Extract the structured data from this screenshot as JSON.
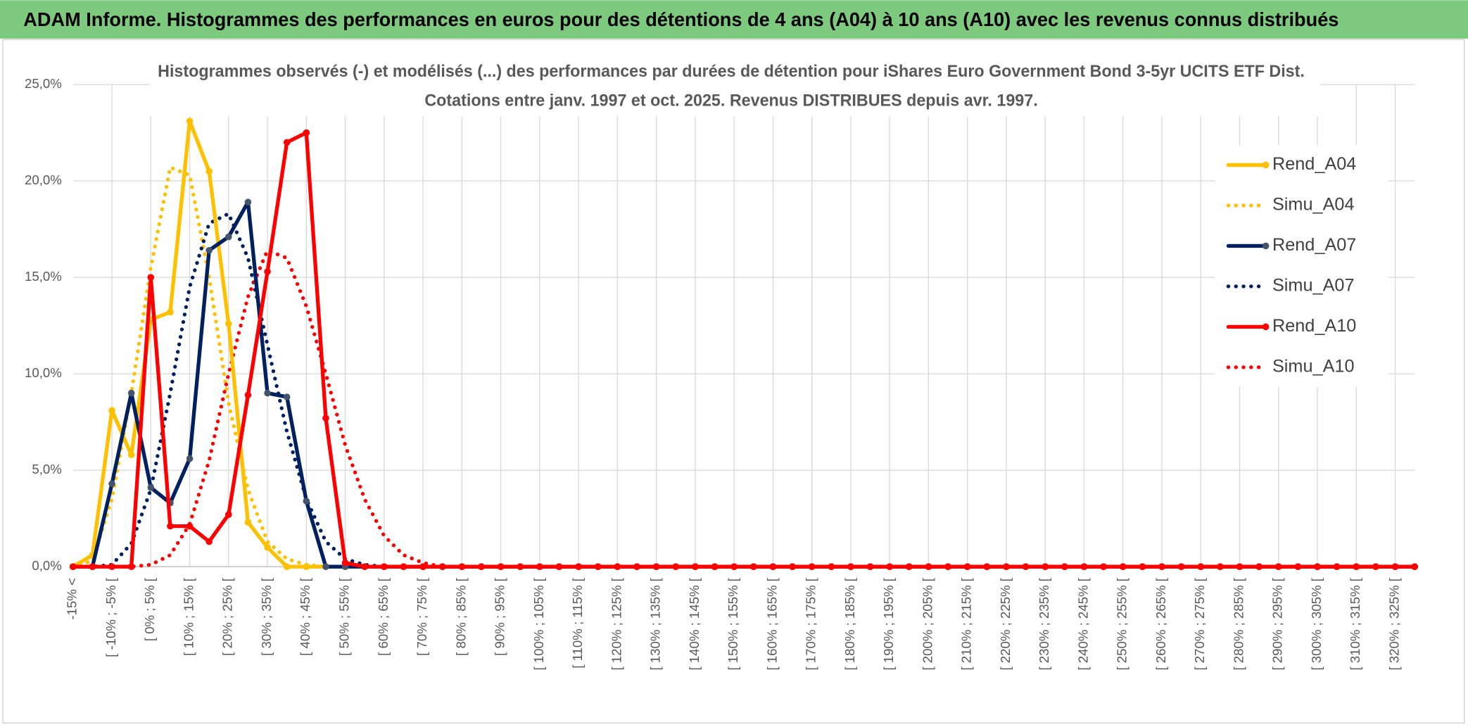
{
  "header": {
    "title": "ADAM Informe. Histogrammes des performances en euros pour des détentions de 4 ans (A04) à 10 ans (A10) avec les revenus connus distribués"
  },
  "chart_data": {
    "type": "line",
    "title": "Histogrammes observés (-) et modélisés (...) des performances par durées de détention pour iShares Euro Government Bond 3-5yr UCITS ETF Dist.",
    "subtitle": "Cotations entre janv. 1997 et oct. 2025. Revenus DISTRIBUES depuis avr. 1997.",
    "categories": [
      "-15% <",
      null,
      "[ -10% ; -5% [",
      null,
      "[ 0% ; 5% [",
      null,
      "[ 10% ; 15% [",
      null,
      "[ 20% ; 25% [",
      null,
      "[ 30% ; 35% [",
      null,
      "[ 40% ; 45% [",
      null,
      "[ 50% ; 55% [",
      null,
      "[ 60% ; 65% [",
      null,
      "[ 70% ; 75% [",
      null,
      "[ 80% ; 85% [",
      null,
      "[ 90% ; 95% [",
      null,
      "[ 100% ; 105% [",
      null,
      "[ 110% ; 115% [",
      null,
      "[ 120% ; 125% [",
      null,
      "[ 130% ; 135% [",
      null,
      "[ 140% ; 145% [",
      null,
      "[ 150% ; 155% [",
      null,
      "[ 160% ; 165% [",
      null,
      "[ 170% ; 175% [",
      null,
      "[ 180% ; 185% [",
      null,
      "[ 190% ; 195% [",
      null,
      "[ 200% ; 205% [",
      null,
      "[ 210% ; 215% [",
      null,
      "[ 220% ; 225% [",
      null,
      "[ 230% ; 235% [",
      null,
      "[ 240% ; 245% [",
      null,
      "[ 250% ; 255% [",
      null,
      "[ 260% ; 265% [",
      null,
      "[ 270% ; 275% [",
      null,
      "[ 280% ; 285% [",
      null,
      "[ 290% ; 295% [",
      null,
      "[ 300% ; 305% [",
      null,
      "[ 310% ; 315% [",
      null,
      "[ 320% ; 325% [",
      null
    ],
    "series": [
      {
        "name": "Rend_A04",
        "color": "#ffc000",
        "style": "solid",
        "markers": true,
        "values": [
          0,
          0.6,
          8.1,
          5.8,
          12.8,
          13.2,
          23.1,
          20.5,
          12.6,
          2.3,
          1.0,
          0,
          0,
          0,
          0,
          0,
          0,
          0,
          0,
          0,
          0,
          0,
          0,
          0,
          0,
          0,
          0,
          0,
          0,
          0,
          0,
          0,
          0,
          0,
          0,
          0,
          0,
          0,
          0,
          0,
          0,
          0,
          0,
          0,
          0,
          0,
          0,
          0,
          0,
          0,
          0,
          0,
          0,
          0,
          0,
          0,
          0,
          0,
          0,
          0,
          0,
          0,
          0,
          0,
          0,
          0,
          0,
          0,
          0,
          0
        ]
      },
      {
        "name": "Simu_A04",
        "color": "#ffc000",
        "style": "dotted",
        "markers": false,
        "values": [
          0,
          0.3,
          3.5,
          9.0,
          15.5,
          20.7,
          20.3,
          15.0,
          8.5,
          4.0,
          1.3,
          0.4,
          0.1,
          0,
          0,
          0,
          0,
          0,
          0,
          0,
          0,
          0,
          0,
          0,
          0,
          0,
          0,
          0,
          0,
          0,
          0,
          0,
          0,
          0,
          0,
          0,
          0,
          0,
          0,
          0,
          0,
          0,
          0,
          0,
          0,
          0,
          0,
          0,
          0,
          0,
          0,
          0,
          0,
          0,
          0,
          0,
          0,
          0,
          0,
          0,
          0,
          0,
          0,
          0,
          0,
          0,
          0,
          0,
          0,
          0
        ]
      },
      {
        "name": "Rend_A07",
        "color": "#002060",
        "marker_color": "#44546a",
        "style": "solid",
        "markers": true,
        "values": [
          0,
          0,
          4.3,
          9.0,
          4.1,
          3.3,
          5.6,
          16.4,
          17.1,
          18.9,
          9.0,
          8.8,
          3.4,
          0,
          0,
          0,
          0,
          0,
          0,
          0,
          0,
          0,
          0,
          0,
          0,
          0,
          0,
          0,
          0,
          0,
          0,
          0,
          0,
          0,
          0,
          0,
          0,
          0,
          0,
          0,
          0,
          0,
          0,
          0,
          0,
          0,
          0,
          0,
          0,
          0,
          0,
          0,
          0,
          0,
          0,
          0,
          0,
          0,
          0,
          0,
          0,
          0,
          0,
          0,
          0,
          0,
          0,
          0,
          0,
          0
        ]
      },
      {
        "name": "Simu_A07",
        "color": "#002060",
        "style": "dotted",
        "markers": false,
        "values": [
          0,
          0,
          0.1,
          1.2,
          4.0,
          9.0,
          14.5,
          17.8,
          18.3,
          16.0,
          11.5,
          7.0,
          3.5,
          1.3,
          0.4,
          0.1,
          0,
          0,
          0,
          0,
          0,
          0,
          0,
          0,
          0,
          0,
          0,
          0,
          0,
          0,
          0,
          0,
          0,
          0,
          0,
          0,
          0,
          0,
          0,
          0,
          0,
          0,
          0,
          0,
          0,
          0,
          0,
          0,
          0,
          0,
          0,
          0,
          0,
          0,
          0,
          0,
          0,
          0,
          0,
          0,
          0,
          0,
          0,
          0,
          0,
          0,
          0,
          0,
          0,
          0
        ]
      },
      {
        "name": "Rend_A10",
        "color": "#ff0000",
        "style": "solid",
        "markers": true,
        "values": [
          0,
          0,
          0,
          0,
          15.0,
          2.1,
          2.1,
          1.3,
          2.7,
          8.9,
          15.3,
          22.0,
          22.5,
          7.7,
          0.2,
          0,
          0,
          0,
          0,
          0,
          0,
          0,
          0,
          0,
          0,
          0,
          0,
          0,
          0,
          0,
          0,
          0,
          0,
          0,
          0,
          0,
          0,
          0,
          0,
          0,
          0,
          0,
          0,
          0,
          0,
          0,
          0,
          0,
          0,
          0,
          0,
          0,
          0,
          0,
          0,
          0,
          0,
          0,
          0,
          0,
          0,
          0,
          0,
          0,
          0,
          0,
          0,
          0,
          0,
          0
        ]
      },
      {
        "name": "Simu_A10",
        "color": "#ff0000",
        "style": "dotted",
        "markers": false,
        "values": [
          0,
          0,
          0,
          0,
          0.1,
          0.6,
          2.2,
          5.5,
          10.0,
          14.0,
          16.4,
          16.0,
          13.5,
          10.0,
          6.3,
          3.5,
          1.6,
          0.6,
          0.2,
          0,
          0,
          0,
          0,
          0,
          0,
          0,
          0,
          0,
          0,
          0,
          0,
          0,
          0,
          0,
          0,
          0,
          0,
          0,
          0,
          0,
          0,
          0,
          0,
          0,
          0,
          0,
          0,
          0,
          0,
          0,
          0,
          0,
          0,
          0,
          0,
          0,
          0,
          0,
          0,
          0,
          0,
          0,
          0,
          0,
          0,
          0,
          0,
          0,
          0,
          0
        ]
      }
    ],
    "ylim": [
      0,
      25
    ],
    "yticks": [
      {
        "value": 0,
        "label": "0,0%"
      },
      {
        "value": 5,
        "label": "5,0%"
      },
      {
        "value": 10,
        "label": "10,0%"
      },
      {
        "value": 15,
        "label": "15,0%"
      },
      {
        "value": 20,
        "label": "20,0%"
      },
      {
        "value": 25,
        "label": "25,0%"
      }
    ],
    "grid": true,
    "legend": "right"
  }
}
